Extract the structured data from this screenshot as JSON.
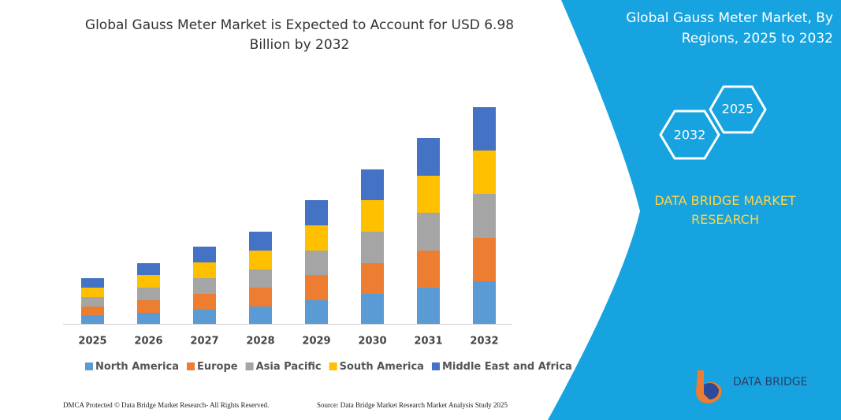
{
  "chart_data": {
    "type": "stacked-bar",
    "title": "Global Gauss Meter Market is Expected to Account for USD 6.98 Billion by 2032",
    "categories": [
      "2025",
      "2026",
      "2027",
      "2028",
      "2029",
      "2030",
      "2031",
      "2032"
    ],
    "series": [
      {
        "name": "North America",
        "color": "#5b9bd5",
        "values": [
          11,
          14,
          18,
          22,
          30,
          38,
          46,
          54
        ]
      },
      {
        "name": "Europe",
        "color": "#ed7d31",
        "values": [
          11,
          16,
          20,
          24,
          32,
          39,
          47,
          55
        ]
      },
      {
        "name": "Asia Pacific",
        "color": "#a5a5a5",
        "values": [
          12,
          16,
          20,
          23,
          31,
          40,
          48,
          56
        ]
      },
      {
        "name": "South America",
        "color": "#ffc000",
        "values": [
          12,
          16,
          20,
          24,
          32,
          40,
          47,
          55
        ]
      },
      {
        "name": "Middle East and Africa",
        "color": "#4472c4",
        "values": [
          12,
          15,
          20,
          24,
          32,
          39,
          48,
          55
        ]
      }
    ],
    "legend": "bottom"
  },
  "panel": {
    "title": "Global Gauss Meter Market, By Regions, 2025 to 2032",
    "hexagons": [
      "2025",
      "2032"
    ],
    "brand": "DATA BRIDGE MARKET RESEARCH"
  },
  "logo": {
    "text": "DATA BRIDGE"
  },
  "footer": {
    "copyright": "DMCA Protected © Data Bridge Market Research- All Rights Reserved.",
    "source": "Source: Data Bridge Market Research Market Analysis Study 2025"
  }
}
